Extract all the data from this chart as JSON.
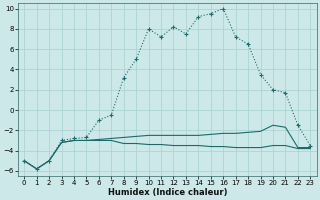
{
  "xlabel": "Humidex (Indice chaleur)",
  "background_color": "#cde8e8",
  "grid_color": "#add4d4",
  "line_color": "#1a6b6b",
  "xlim": [
    -0.5,
    23.5
  ],
  "ylim": [
    -6.5,
    10.5
  ],
  "x_ticks": [
    0,
    1,
    2,
    3,
    4,
    5,
    6,
    7,
    8,
    9,
    10,
    11,
    12,
    13,
    14,
    15,
    16,
    17,
    18,
    19,
    20,
    21,
    22,
    23
  ],
  "y_ticks": [
    -6,
    -4,
    -2,
    0,
    2,
    4,
    6,
    8,
    10
  ],
  "line1_x": [
    0,
    1,
    2,
    3,
    4,
    5,
    6,
    7,
    8,
    9,
    10,
    11,
    12,
    13,
    14,
    15,
    16,
    17,
    18,
    19,
    20,
    21,
    22,
    23
  ],
  "line1_y": [
    -5.0,
    -5.8,
    -5.0,
    -3.0,
    -2.8,
    -2.7,
    -1.0,
    -0.5,
    3.2,
    5.0,
    8.0,
    7.2,
    8.2,
    7.5,
    9.2,
    9.5,
    10.0,
    7.2,
    6.5,
    3.5,
    2.0,
    1.7,
    -1.5,
    -3.5
  ],
  "line2_x": [
    0,
    1,
    2,
    3,
    4,
    5,
    6,
    7,
    8,
    9,
    10,
    11,
    12,
    13,
    14,
    15,
    16,
    17,
    18,
    19,
    20,
    21,
    22,
    23
  ],
  "line2_y": [
    -5.0,
    -5.8,
    -5.0,
    -3.2,
    -3.0,
    -3.0,
    -2.9,
    -2.8,
    -2.7,
    -2.6,
    -2.5,
    -2.5,
    -2.5,
    -2.5,
    -2.5,
    -2.4,
    -2.3,
    -2.3,
    -2.2,
    -2.1,
    -1.5,
    -1.7,
    -3.7,
    -3.7
  ],
  "line3_x": [
    0,
    1,
    2,
    3,
    4,
    5,
    6,
    7,
    8,
    9,
    10,
    11,
    12,
    13,
    14,
    15,
    16,
    17,
    18,
    19,
    20,
    21,
    22,
    23
  ],
  "line3_y": [
    -5.0,
    -5.8,
    -5.0,
    -3.2,
    -3.0,
    -3.0,
    -3.0,
    -3.0,
    -3.3,
    -3.3,
    -3.4,
    -3.4,
    -3.5,
    -3.5,
    -3.5,
    -3.6,
    -3.6,
    -3.7,
    -3.7,
    -3.7,
    -3.5,
    -3.5,
    -3.8,
    -3.8
  ]
}
